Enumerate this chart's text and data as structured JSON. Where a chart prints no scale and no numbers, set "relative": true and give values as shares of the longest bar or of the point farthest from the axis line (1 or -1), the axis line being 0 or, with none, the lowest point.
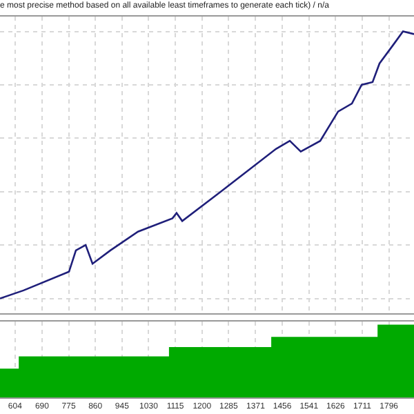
{
  "chart_data": [
    {
      "type": "line",
      "title": "e most precise method based on all available least timeframes to generate each tick) / n/a",
      "relative": true,
      "x": [
        556,
        631,
        776,
        798,
        829,
        851,
        908,
        996,
        1106,
        1119,
        1137,
        1260,
        1348,
        1436,
        1480,
        1515,
        1577,
        1634,
        1678,
        1709,
        1744,
        1766,
        1810,
        1841,
        1876
      ],
      "series": [
        {
          "color": "#1f1f7a",
          "values": [
            0,
            0.03,
            0.1,
            0.18,
            0.2,
            0.13,
            0.18,
            0.25,
            0.3,
            0.32,
            0.29,
            0.4,
            0.48,
            0.56,
            0.59,
            0.55,
            0.59,
            0.7,
            0.73,
            0.8,
            0.81,
            0.88,
            0.95,
            1.0,
            0.99
          ]
        }
      ],
      "xlim": [
        556,
        1876
      ],
      "xticks": [
        604,
        690,
        775,
        860,
        945,
        1030,
        1115,
        1200,
        1285,
        1371,
        1456,
        1541,
        1626,
        1711,
        1796
      ],
      "grid": true,
      "tick_labels": false
    },
    {
      "type": "area",
      "relative": true,
      "x": [
        556,
        618,
        618,
        1097,
        1097,
        1423,
        1423,
        1762,
        1762,
        1876
      ],
      "series": [
        {
          "color": "#00aa00",
          "values": [
            0.39,
            0.39,
            0.56,
            0.56,
            0.69,
            0.69,
            0.83,
            0.83,
            1,
            1
          ]
        }
      ],
      "xlim": [
        556,
        1876
      ],
      "xticks": [
        604,
        690,
        775,
        860,
        945,
        1030,
        1115,
        1200,
        1285,
        1371,
        1456,
        1541,
        1626,
        1711,
        1796
      ],
      "grid": "x"
    }
  ]
}
